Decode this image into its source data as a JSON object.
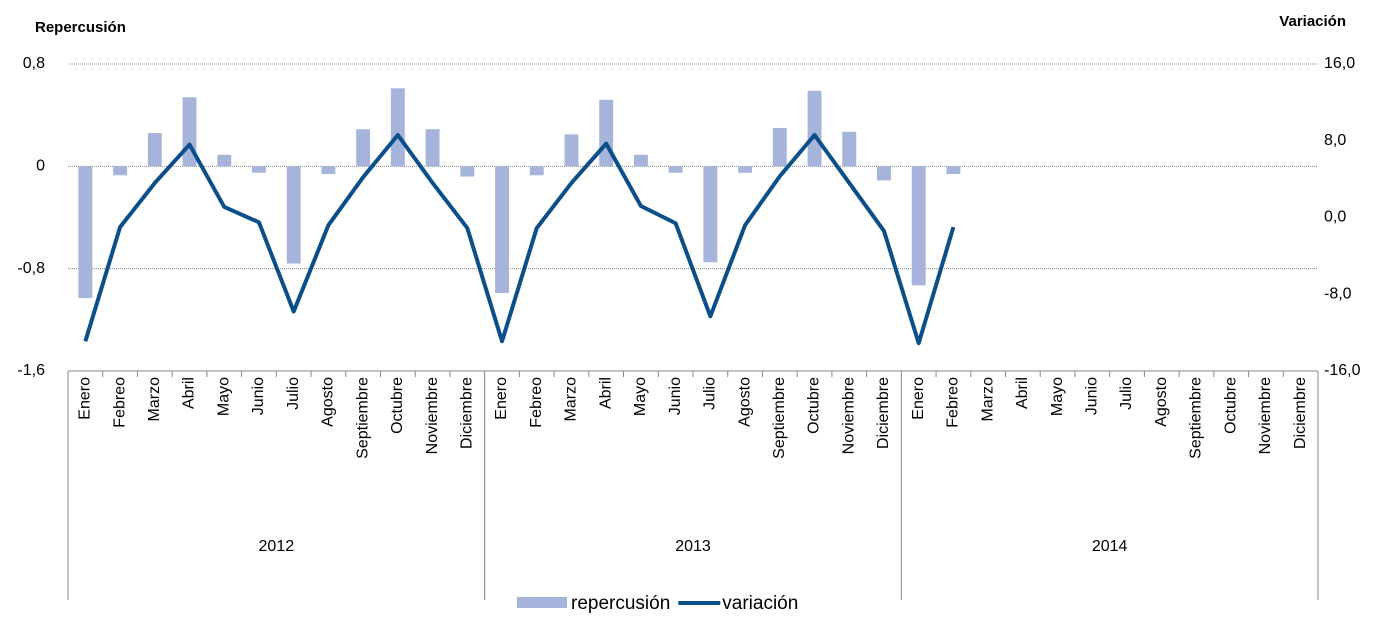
{
  "chart_data": {
    "type": "bar-line",
    "y_title": "Repercusión",
    "y2_title": "Variación",
    "categories": [
      "Enero",
      "Febreo",
      "Marzo",
      "Abril",
      "Mayo",
      "Junio",
      "Julio",
      "Agosto",
      "Septiembre",
      "Octubre",
      "Noviembre",
      "Diciembre",
      "Enero",
      "Febreo",
      "Marzo",
      "Abril",
      "Mayo",
      "Junio",
      "Julio",
      "Agosto",
      "Septiembre",
      "Octubre",
      "Noviembre",
      "Diciembre",
      "Enero",
      "Febreo",
      "Marzo",
      "Abril",
      "Mayo",
      "Junio",
      "Julio",
      "Agosto",
      "Septiembre",
      "Octubre",
      "Noviembre",
      "Diciembre"
    ],
    "years": [
      "2012",
      "2013",
      "2014"
    ],
    "series": [
      {
        "name": "repercusión",
        "type": "bar",
        "color": "#a6b4dc",
        "axis": "y",
        "values": [
          -1.03,
          -0.07,
          0.26,
          0.54,
          0.09,
          -0.05,
          -0.76,
          -0.06,
          0.29,
          0.61,
          0.29,
          -0.08,
          -0.99,
          -0.07,
          0.25,
          0.52,
          0.09,
          -0.05,
          -0.75,
          -0.05,
          0.3,
          0.59,
          0.27,
          -0.11,
          -0.93,
          -0.06,
          null,
          null,
          null,
          null,
          null,
          null,
          null,
          null,
          null,
          null
        ]
      },
      {
        "name": "variación",
        "type": "line",
        "color": "#0b4f8a",
        "axis": "y2",
        "values": [
          -12.9,
          -1.0,
          3.6,
          7.6,
          1.1,
          -0.5,
          -9.8,
          -0.8,
          4.2,
          8.6,
          3.6,
          -1.1,
          -12.9,
          -1.1,
          3.6,
          7.7,
          1.2,
          -0.6,
          -10.3,
          -0.8,
          4.3,
          8.6,
          3.6,
          -1.4,
          -13.1,
          -1.0,
          null,
          null,
          null,
          null,
          null,
          null,
          null,
          null,
          null,
          null
        ]
      }
    ],
    "ylim": [
      -1.6,
      0.8
    ],
    "yticks": [
      {
        "value": 0.8,
        "label": "0,8"
      },
      0,
      {
        "value": -0.8,
        "label": "-0,8"
      },
      {
        "value": -1.6,
        "label": "-1,6"
      }
    ],
    "y2lim": [
      -16,
      16
    ],
    "y2ticks": [
      {
        "value": 16,
        "label": "16,0"
      },
      {
        "value": 8,
        "label": "8,0"
      },
      {
        "value": 0,
        "label": "0,0"
      },
      {
        "value": -8,
        "label": "-8,0"
      },
      {
        "value": -16,
        "label": "-16,0"
      }
    ],
    "grid": true
  }
}
